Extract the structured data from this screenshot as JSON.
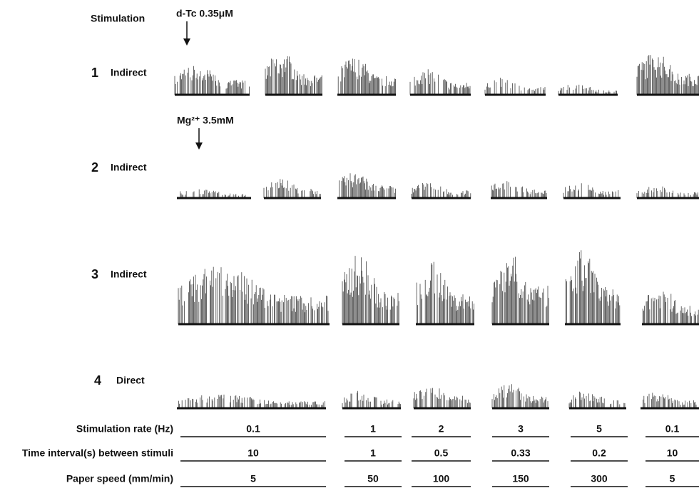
{
  "header": {
    "title": "Stimulation"
  },
  "annotations": [
    "d-Tc 0.35μM",
    "Mg²⁺ 3.5mM"
  ],
  "rows": [
    {
      "number": "1",
      "label": "Indirect"
    },
    {
      "number": "2",
      "label": "Indirect"
    },
    {
      "number": "3",
      "label": "Indirect"
    },
    {
      "number": "4",
      "label": "Direct"
    }
  ],
  "table": {
    "rows": [
      {
        "label": "Stimulation rate (Hz)",
        "values": [
          0.1,
          1,
          2,
          3,
          5,
          0.1
        ]
      },
      {
        "label": "Time interval(s) between stimuli",
        "values": [
          10,
          1,
          0.5,
          0.33,
          0.2,
          10
        ]
      },
      {
        "label": "Paper speed (mm/min)",
        "values": [
          5,
          50,
          100,
          150,
          300,
          5
        ]
      }
    ]
  }
}
